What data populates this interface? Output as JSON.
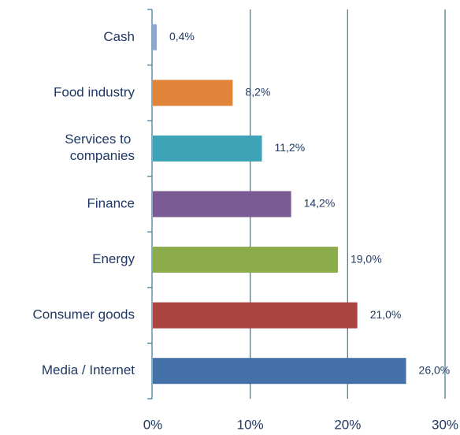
{
  "chart_data": {
    "type": "barh",
    "categories": [
      "Cash",
      "Food industry",
      "Services to companies",
      "Finance",
      "Energy",
      "Consumer goods",
      "Media / Internet"
    ],
    "values": [
      0.4,
      8.2,
      11.2,
      14.2,
      19.0,
      21.0,
      26.0
    ],
    "value_labels": [
      "0,4%",
      "8,2%",
      "11,2%",
      "14,2%",
      "19,0%",
      "21,0%",
      "26,0%"
    ],
    "colors": [
      "#8fa6cf",
      "#e0843a",
      "#3fa3b8",
      "#7a5b94",
      "#8cac4b",
      "#ab4542",
      "#4471a8"
    ],
    "xlim": [
      0,
      30
    ],
    "xticks": [
      {
        "value": 0,
        "label": "0%"
      },
      {
        "value": 10,
        "label": "10%"
      },
      {
        "value": 20,
        "label": "20%"
      },
      {
        "value": 30,
        "label": "30%"
      }
    ],
    "grid": true
  }
}
